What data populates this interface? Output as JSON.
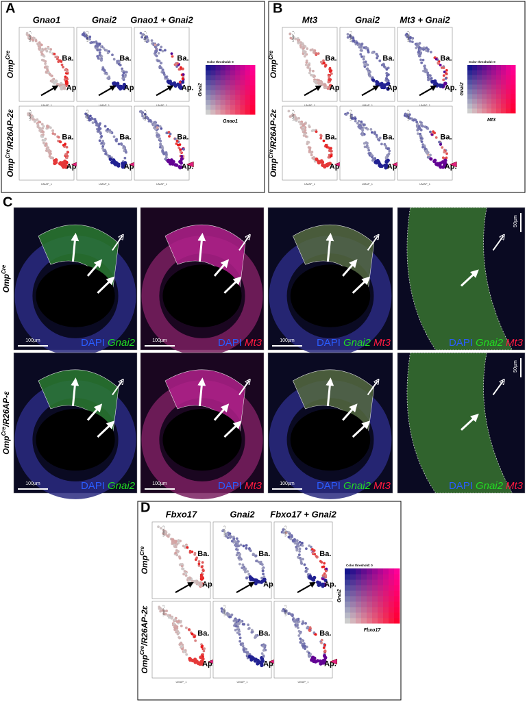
{
  "panel_a": {
    "label": "A",
    "columns": [
      "Gnao1",
      "Gnai2",
      "Gnao1 + Gnai2"
    ],
    "rows": [
      {
        "base": "Omp",
        "sup": "Cre",
        "suffix": ""
      },
      {
        "base": "Omp",
        "sup": "Cre",
        "suffix": "/R26AP-2ε"
      }
    ],
    "annotations": {
      "basal": "Ba.",
      "apical": "Ap."
    },
    "axes": {
      "x": "UMAP_1",
      "y": "UMAP_2"
    },
    "legend": {
      "title": "Color threshold: 0",
      "y_label": "Gnai2",
      "x_label": "Gnao1"
    }
  },
  "panel_b": {
    "label": "B",
    "columns": [
      "Mt3",
      "Gnai2",
      "Mt3 + Gnai2"
    ],
    "rows": [
      {
        "base": "Omp",
        "sup": "Cre",
        "suffix": ""
      },
      {
        "base": "Omp",
        "sup": "Cre",
        "suffix": "/R26AP-2ε"
      }
    ],
    "annotations": {
      "basal": "Ba.",
      "apical": "Ap."
    },
    "axes": {
      "x": "UMAP_1",
      "y": "UMAP_2"
    },
    "legend": {
      "title": "Color threshold: 0",
      "y_label": "Gnai2",
      "x_label": "Mt3"
    }
  },
  "panel_c": {
    "label": "C",
    "rows": [
      {
        "base": "Omp",
        "sup": "Cre",
        "suffix": ""
      },
      {
        "base": "Omp",
        "sup": "Cre",
        "suffix": "/R26AP-ε"
      }
    ],
    "stains": {
      "dapi": "DAPI",
      "gnai2": "Gnai2",
      "mt3": "Mt3"
    },
    "scale_bars": {
      "wide": "100µm",
      "zoom": "50µm"
    }
  },
  "panel_d": {
    "label": "D",
    "columns": [
      "Fbxo17",
      "Gnai2",
      "Fbxo17 + Gnai2"
    ],
    "rows": [
      {
        "base": "Omp",
        "sup": "Cre",
        "suffix": ""
      },
      {
        "base": "Omp",
        "sup": "Cre",
        "suffix": "/R26AP-2ε"
      }
    ],
    "annotations": {
      "basal": "Ba.",
      "apical": "Ap."
    },
    "axes": {
      "x": "UMAP_1",
      "y": "UMAP_2"
    },
    "legend": {
      "title": "Color threshold: 0",
      "y_label": "Gnai2",
      "x_label": "Fbxo17"
    }
  }
}
